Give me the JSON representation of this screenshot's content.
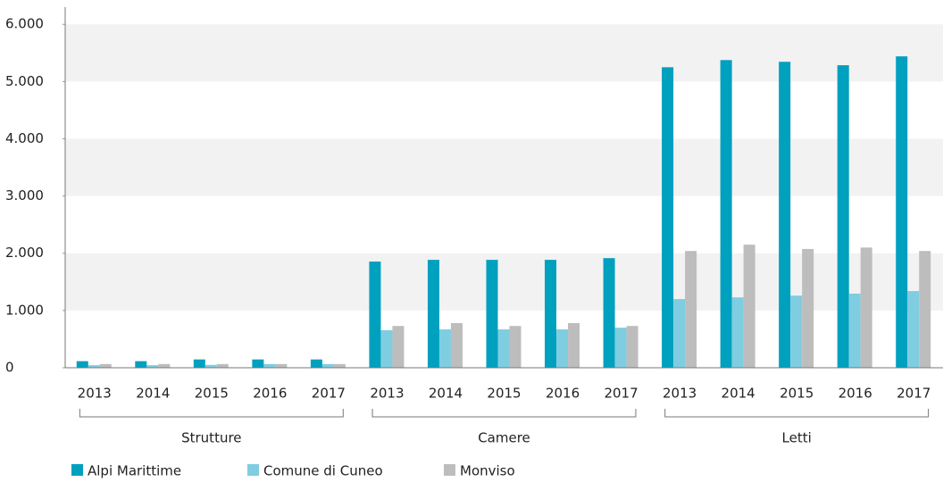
{
  "chart_data": {
    "type": "bar",
    "groups": [
      {
        "name": "Strutture",
        "categories": [
          "2013",
          "2014",
          "2015",
          "2016",
          "2017"
        ]
      },
      {
        "name": "Camere",
        "categories": [
          "2013",
          "2014",
          "2015",
          "2016",
          "2017"
        ]
      },
      {
        "name": "Letti",
        "categories": [
          "2013",
          "2014",
          "2015",
          "2016",
          "2017"
        ]
      }
    ],
    "series": [
      {
        "name": "Alpi Marittime",
        "color": "#00a0bf",
        "values": [
          115,
          115,
          145,
          145,
          145,
          1855,
          1885,
          1885,
          1885,
          1915,
          5250,
          5375,
          5345,
          5285,
          5440
        ]
      },
      {
        "name": "Comune di Cuneo",
        "color": "#7fcde0",
        "values": [
          45,
          45,
          50,
          65,
          65,
          655,
          670,
          670,
          670,
          700,
          1200,
          1230,
          1260,
          1295,
          1340
        ]
      },
      {
        "name": "Monviso",
        "color": "#bdbdbd",
        "values": [
          65,
          65,
          65,
          65,
          65,
          730,
          780,
          730,
          780,
          730,
          2040,
          2150,
          2075,
          2100,
          2040
        ]
      }
    ],
    "ylim": [
      0,
      6300
    ],
    "yticks": [
      0,
      {
        "value": 1000,
        "label": "1.000"
      },
      {
        "value": 2000,
        "label": "2.000"
      },
      {
        "value": 3000,
        "label": "3.000"
      },
      {
        "value": 4000,
        "label": "4.000"
      },
      {
        "value": 5000,
        "label": "5.000"
      },
      {
        "value": 6000,
        "label": "6.000"
      }
    ],
    "grid": "bands",
    "band_color": "#f2f2f2",
    "legend": "bottom-left"
  }
}
